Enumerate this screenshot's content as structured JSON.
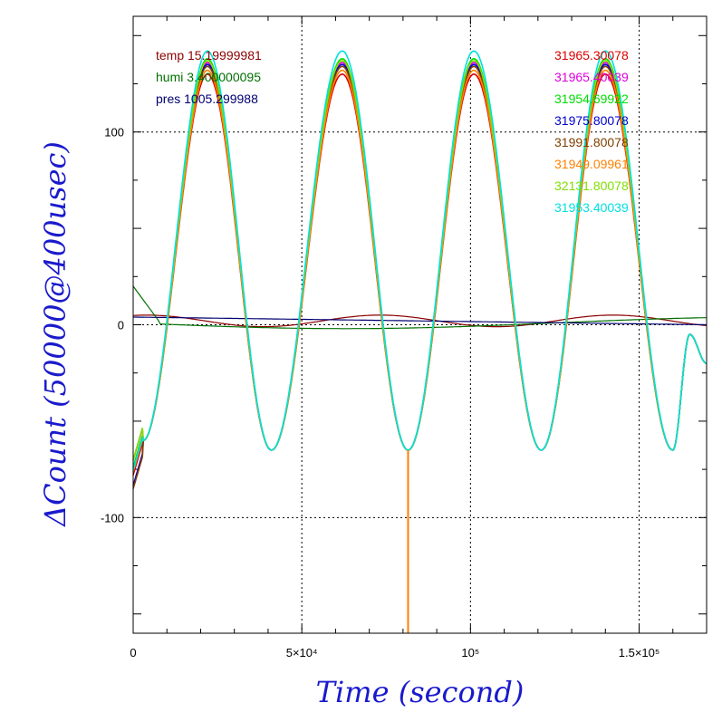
{
  "chart_data": {
    "type": "line",
    "xlabel": "Time (second)",
    "ylabel": "ΔCount (50000@400usec)",
    "xlim": [
      0,
      170000
    ],
    "ylim": [
      -160,
      160
    ],
    "grid": true,
    "legend_placement": "top",
    "x_ticks": [
      {
        "value": 0,
        "label": "0"
      },
      {
        "value": 50000,
        "label": "5×10⁴"
      },
      {
        "value": 100000,
        "label": "10⁵"
      },
      {
        "value": 150000,
        "label": "1.5×10⁵"
      }
    ],
    "y_ticks": [
      {
        "value": 100,
        "label": "100"
      },
      {
        "value": 0,
        "label": "0"
      },
      {
        "value": -100,
        "label": "-100"
      }
    ],
    "env_labels": [
      {
        "label": "temp 15.19999981",
        "color": "#8b0000"
      },
      {
        "label": "humi 3.400000095",
        "color": "#007000"
      },
      {
        "label": "pres 1005.299988",
        "color": "#000070"
      }
    ],
    "oscillation": {
      "peak_times": [
        22000,
        62000,
        101000,
        140000
      ],
      "trough_times": [
        41000,
        81500,
        121000,
        160000
      ],
      "trough_value": -65,
      "spike_time": 81500,
      "spike_value": -160
    },
    "series": [
      {
        "name": "31965.30078",
        "color": "#dd0000",
        "peak": 130
      },
      {
        "name": "31965.40039",
        "color": "#dd00dd",
        "peak": 136
      },
      {
        "name": "31954.69922",
        "color": "#00dd00",
        "peak": 138
      },
      {
        "name": "31975.80078",
        "color": "#0000cc",
        "peak": 135
      },
      {
        "name": "31991.80078",
        "color": "#804000",
        "peak": 134
      },
      {
        "name": "31949.09961",
        "color": "#ff8000",
        "peak": 132
      },
      {
        "name": "32131.80078",
        "color": "#80e000",
        "peak": 137
      },
      {
        "name": "31953.40039",
        "color": "#00e0e0",
        "peak": 142
      }
    ]
  }
}
